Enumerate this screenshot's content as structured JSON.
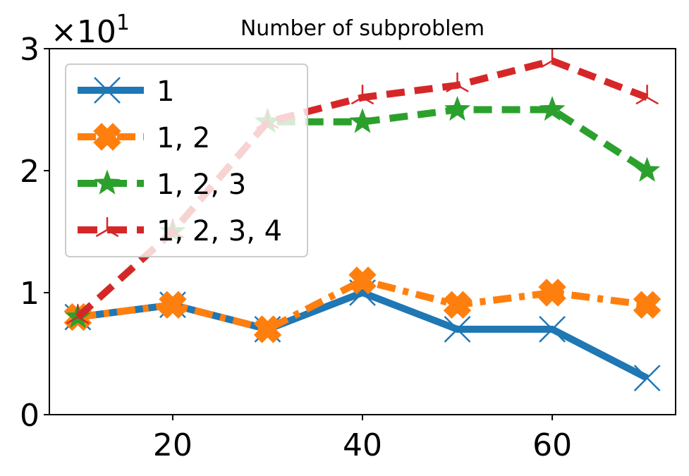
{
  "chart_data": {
    "type": "line",
    "title": "Number of subproblem",
    "xlabel": "",
    "ylabel": "",
    "y_multiplier": {
      "base": "×10",
      "exponent": "1"
    },
    "x_ticks": [
      20,
      40,
      60
    ],
    "y_ticks": [
      0,
      1,
      2,
      3
    ],
    "xlim": [
      7,
      73
    ],
    "ylim": [
      0,
      3
    ],
    "legend_position": "upper-left",
    "grid": false,
    "x": [
      10,
      20,
      30,
      40,
      50,
      60,
      70
    ],
    "series": [
      {
        "name": "1",
        "color": "#1f77b4",
        "marker": "x",
        "linestyle": "solid",
        "values": [
          0.8,
          0.9,
          0.7,
          1.0,
          0.7,
          0.7,
          0.3
        ]
      },
      {
        "name": "1, 2",
        "color": "#ff7f0e",
        "marker": "X",
        "linestyle": "dashdot",
        "values": [
          0.8,
          0.9,
          0.7,
          1.1,
          0.9,
          1.0,
          0.9
        ]
      },
      {
        "name": "1, 2, 3",
        "color": "#2ca02c",
        "marker": "star",
        "linestyle": "dashed",
        "values": [
          0.8,
          1.5,
          2.4,
          2.4,
          2.5,
          2.5,
          2.0
        ]
      },
      {
        "name": "1, 2, 3, 4",
        "color": "#d62728",
        "marker": "tri_up",
        "linestyle": "dashed",
        "values": [
          0.8,
          1.5,
          2.4,
          2.6,
          2.7,
          2.9,
          2.6
        ]
      }
    ]
  }
}
